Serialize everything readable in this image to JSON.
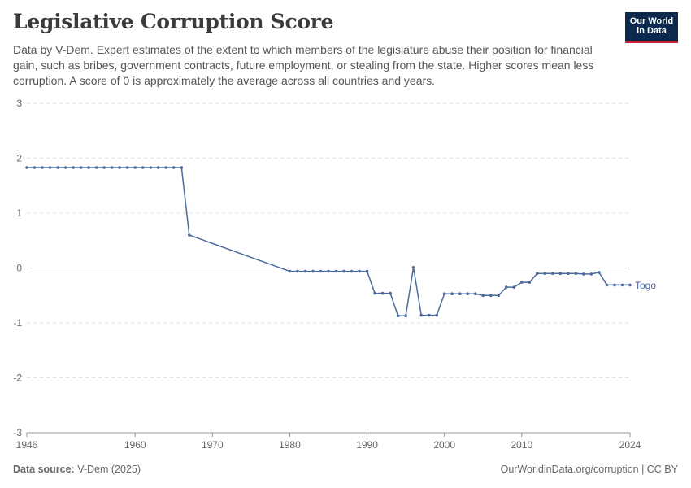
{
  "header": {
    "title": "Legislative Corruption Score",
    "subtitle": "Data by V-Dem. Expert estimates of the extent to which members of the legislature abuse their position for financial gain, such as bribes, government contracts, future employment, or stealing from the state. Higher scores mean less corruption. A score of 0 is approximately the average across all countries and years."
  },
  "logo": {
    "line1": "Our World",
    "line2": "in Data",
    "bg_color": "#0c2a4d",
    "accent_color": "#c7243a"
  },
  "footer": {
    "source_label": "Data source:",
    "source_value": "V-Dem (2025)",
    "right_text": "OurWorldinData.org/corruption | CC BY"
  },
  "chart_data": {
    "type": "line",
    "title": "Legislative Corruption Score",
    "xlabel": "",
    "ylabel": "",
    "xlim": [
      1946,
      2024
    ],
    "ylim": [
      -3,
      3
    ],
    "x_ticks": [
      1946,
      1960,
      1970,
      1980,
      1990,
      2000,
      2010,
      2024
    ],
    "y_ticks": [
      3,
      2,
      1,
      0,
      -1,
      -2,
      -3
    ],
    "grid": true,
    "series": [
      {
        "name": "Togo",
        "color": "#4c6a9c",
        "x": [
          1946,
          1947,
          1948,
          1949,
          1950,
          1951,
          1952,
          1953,
          1954,
          1955,
          1956,
          1957,
          1958,
          1959,
          1960,
          1961,
          1962,
          1963,
          1964,
          1965,
          1966,
          1967,
          1980,
          1981,
          1982,
          1983,
          1984,
          1985,
          1986,
          1987,
          1988,
          1989,
          1990,
          1991,
          1992,
          1993,
          1994,
          1995,
          1996,
          1997,
          1998,
          1999,
          2000,
          2001,
          2002,
          2003,
          2004,
          2005,
          2006,
          2007,
          2008,
          2009,
          2010,
          2011,
          2012,
          2013,
          2014,
          2015,
          2016,
          2017,
          2018,
          2019,
          2020,
          2021,
          2022,
          2023,
          2024
        ],
        "y": [
          1.83,
          1.83,
          1.83,
          1.83,
          1.83,
          1.83,
          1.83,
          1.83,
          1.83,
          1.83,
          1.83,
          1.83,
          1.83,
          1.83,
          1.83,
          1.83,
          1.83,
          1.83,
          1.83,
          1.83,
          1.83,
          0.6,
          -0.06,
          -0.06,
          -0.06,
          -0.06,
          -0.06,
          -0.06,
          -0.06,
          -0.06,
          -0.06,
          -0.06,
          -0.06,
          -0.46,
          -0.46,
          -0.46,
          -0.87,
          -0.87,
          0.01,
          -0.86,
          -0.86,
          -0.86,
          -0.47,
          -0.47,
          -0.47,
          -0.47,
          -0.47,
          -0.5,
          -0.5,
          -0.5,
          -0.35,
          -0.35,
          -0.26,
          -0.26,
          -0.1,
          -0.1,
          -0.1,
          -0.1,
          -0.1,
          -0.1,
          -0.11,
          -0.11,
          -0.08,
          -0.31,
          -0.31,
          -0.31,
          -0.31
        ]
      }
    ]
  }
}
